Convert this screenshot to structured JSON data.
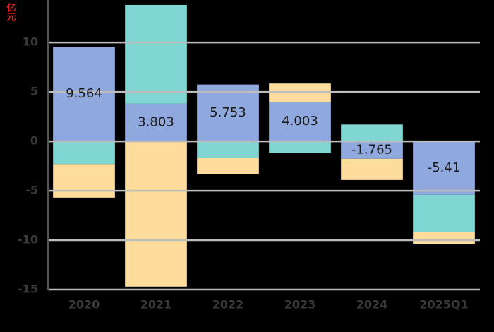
{
  "chart_data": {
    "type": "stacked_bar",
    "y_label": "亿元",
    "categories": [
      "2020",
      "2021",
      "2022",
      "2023",
      "2024",
      "2025Q1"
    ],
    "series": [
      {
        "color": "#8fa8dd",
        "values": [
          9.564,
          3.803,
          5.753,
          4.003,
          -1.765,
          -5.41
        ]
      },
      {
        "color": "#7fd6d2",
        "values": [
          -2.3,
          10.0,
          -1.65,
          -1.2,
          1.7,
          -3.75
        ]
      },
      {
        "color": "#fddc9c",
        "values": [
          -3.4,
          -14.7,
          -1.7,
          1.85,
          -2.15,
          -1.2
        ]
      }
    ],
    "label_series": 0,
    "ylim": [
      -15,
      14.3
    ],
    "yticks": [
      -15,
      -10,
      -5,
      0,
      5,
      10
    ],
    "grid": true
  }
}
